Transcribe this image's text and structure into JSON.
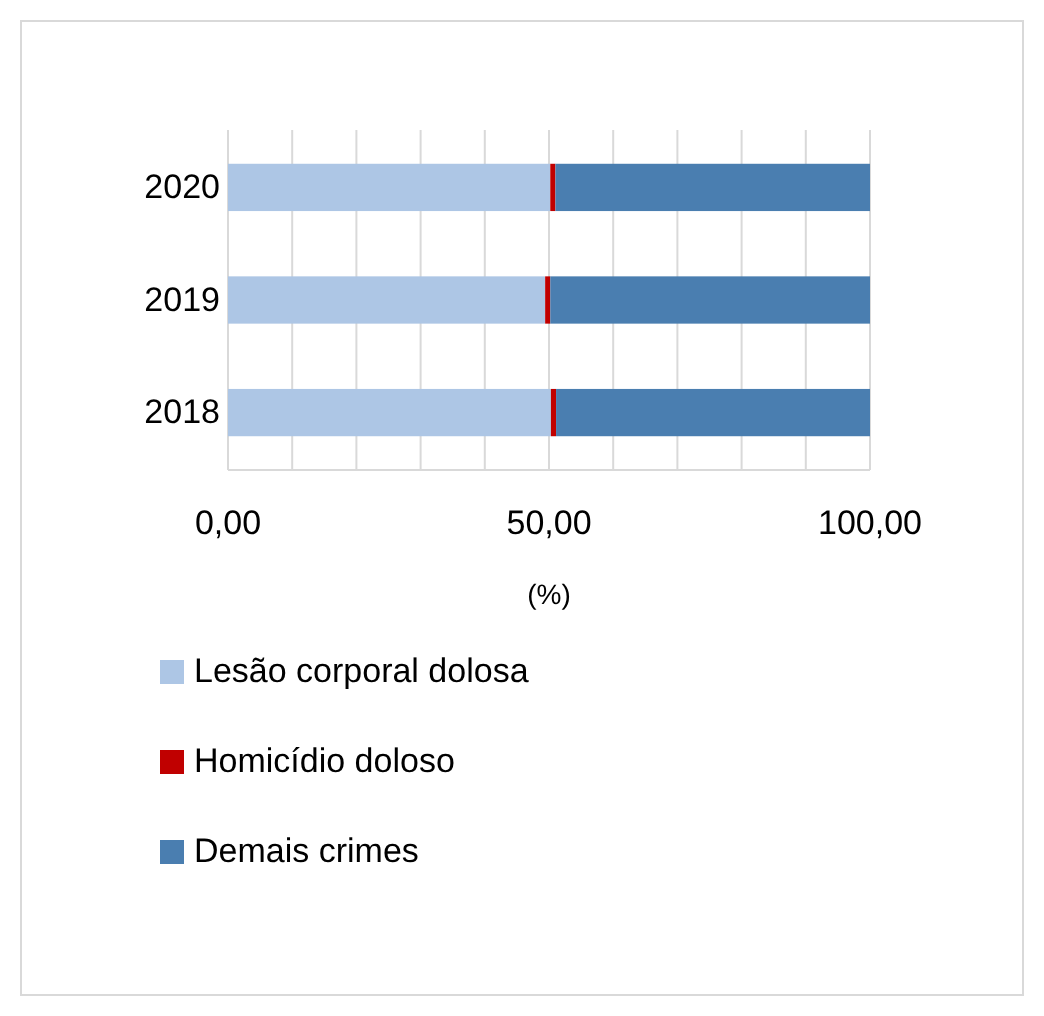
{
  "chart_data": {
    "type": "bar",
    "orientation": "horizontal",
    "stacked": true,
    "xlabel": "(%)",
    "categories": [
      "2020",
      "2019",
      "2018"
    ],
    "series": [
      {
        "name": "Lesão corporal dolosa",
        "color": "#adc6e5",
        "values": [
          50.2,
          49.4,
          50.3
        ]
      },
      {
        "name": "Homicídio doloso",
        "color": "#c00000",
        "values": [
          0.8,
          0.8,
          0.8
        ]
      },
      {
        "name": "Demais crimes",
        "color": "#4a7eb0",
        "values": [
          49.0,
          49.8,
          48.9
        ]
      }
    ],
    "xlim": [
      0,
      100
    ],
    "xticks": [
      {
        "value": 0,
        "label": "0,00"
      },
      {
        "value": 10,
        "label": null
      },
      {
        "value": 20,
        "label": null
      },
      {
        "value": 30,
        "label": null
      },
      {
        "value": 40,
        "label": null
      },
      {
        "value": 50,
        "label": "50,00"
      },
      {
        "value": 60,
        "label": null
      },
      {
        "value": 70,
        "label": null
      },
      {
        "value": 80,
        "label": null
      },
      {
        "value": 90,
        "label": null
      },
      {
        "value": 100,
        "label": "100,00"
      }
    ],
    "grid": "x",
    "legend": "bottom"
  }
}
